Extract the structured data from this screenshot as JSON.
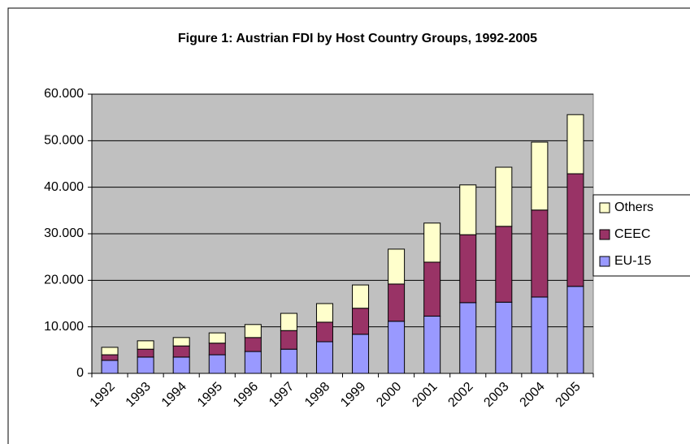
{
  "chart_data": {
    "type": "stacked_bar",
    "title": "Figure 1: Austrian FDI by Host Country Groups, 1992-2005",
    "categories": [
      "1992",
      "1993",
      "1994",
      "1995",
      "1996",
      "1997",
      "1998",
      "1999",
      "2000",
      "2001",
      "2002",
      "2003",
      "2004",
      "2005"
    ],
    "series": [
      {
        "name": "EU-15",
        "color": "#9999ff",
        "values": [
          2800,
          3500,
          3500,
          4000,
          4700,
          5200,
          6800,
          8400,
          11200,
          12300,
          15200,
          15300,
          16400,
          18700
        ]
      },
      {
        "name": "CEEC",
        "color": "#993366",
        "values": [
          1200,
          1700,
          2400,
          2500,
          3000,
          4000,
          4200,
          5600,
          8000,
          11600,
          14600,
          16300,
          18700,
          24200
        ]
      },
      {
        "name": "Others",
        "color": "#ffffcc",
        "values": [
          1600,
          1800,
          1800,
          2200,
          2800,
          3700,
          4000,
          5000,
          7500,
          8400,
          10700,
          12700,
          14600,
          12700
        ]
      }
    ],
    "ylim": [
      0,
      60000
    ],
    "yticks": [
      0,
      {
        "value": 10000,
        "label": "10.000"
      },
      {
        "value": 20000,
        "label": "20.000"
      },
      {
        "value": 30000,
        "label": "30.000"
      },
      {
        "value": 40000,
        "label": "40.000"
      },
      {
        "value": 50000,
        "label": "50.000"
      },
      {
        "value": 60000,
        "label": "60.000"
      }
    ],
    "grid": true,
    "legend": "right"
  }
}
